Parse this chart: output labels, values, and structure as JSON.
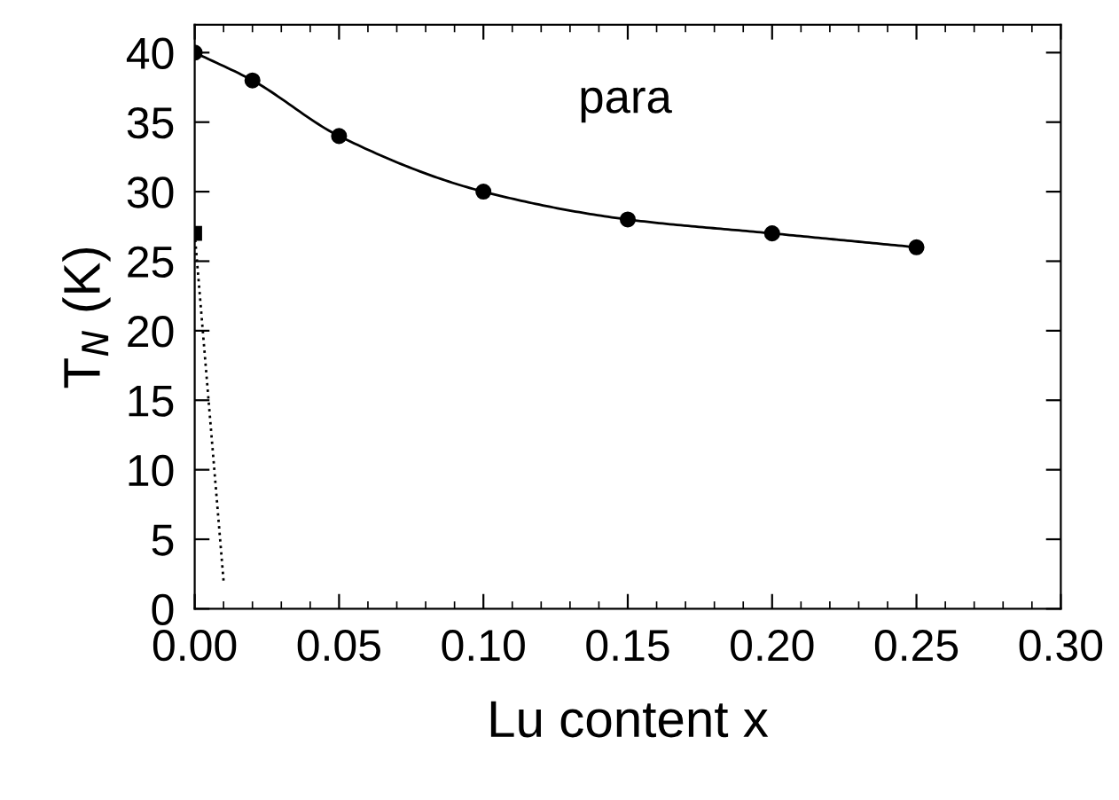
{
  "chart_data": {
    "type": "line",
    "xlabel": "Lu content x",
    "ylabel": "T$_{N}$ (K)",
    "series": [
      {
        "color": "#000000",
        "marker": "circle",
        "line_style": "solid",
        "x": [
          0,
          0.02,
          0.05,
          0.1,
          0.15,
          0.2,
          0.25
        ],
        "values": [
          40,
          38,
          34,
          30,
          28,
          27,
          26
        ]
      },
      {
        "type": "scatter",
        "color": "#000000",
        "marker": "square",
        "x": [
          0
        ],
        "values": [
          27
        ]
      },
      {
        "color": "#000000",
        "marker": "none",
        "line_style": "dotted",
        "x": [
          0,
          0.01
        ],
        "values": [
          27,
          2
        ]
      }
    ],
    "annotations": [
      "para"
    ],
    "xlim": [
      0,
      0.3
    ],
    "xticks": [
      {
        "value": 0,
        "label": "0.00"
      },
      {
        "value": 0.05,
        "label": "0.05"
      },
      {
        "value": 0.1,
        "label": "0.10"
      },
      {
        "value": 0.15,
        "label": "0.15"
      },
      {
        "value": 0.2,
        "label": "0.20"
      },
      {
        "value": 0.25,
        "label": "0.25"
      },
      {
        "value": 0.3,
        "label": "0.30"
      }
    ],
    "ylim": [
      0,
      42
    ],
    "yticks": [
      0,
      5,
      10,
      15,
      20,
      25,
      30,
      35,
      40
    ],
    "grid": false,
    "legend": false
  }
}
